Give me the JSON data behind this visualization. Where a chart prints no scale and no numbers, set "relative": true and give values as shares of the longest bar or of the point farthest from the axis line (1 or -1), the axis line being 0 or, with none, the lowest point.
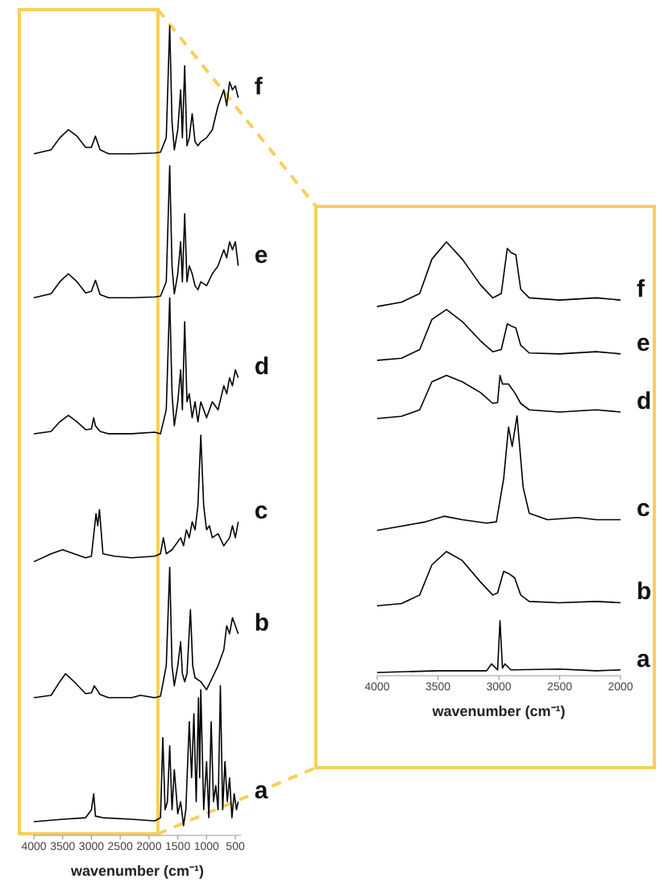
{
  "chart_data": [
    {
      "type": "line",
      "relative": true,
      "xlabel": "wavenumber (cm⁻¹)",
      "xlim": [
        4000,
        400
      ],
      "xticks": [
        4000,
        3500,
        3000,
        2500,
        2000,
        1500,
        1000,
        500
      ],
      "series": [
        {
          "name": "f",
          "color": "#000000",
          "x": [
            4000,
            3700,
            3550,
            3400,
            3250,
            3100,
            3000,
            2930,
            2850,
            2700,
            2300,
            1900,
            1800,
            1700,
            1640,
            1600,
            1560,
            1500,
            1450,
            1420,
            1380,
            1340,
            1300,
            1250,
            1200,
            1150,
            1100,
            1000,
            900,
            800,
            700,
            650,
            600,
            550,
            500,
            450
          ],
          "values": [
            0.84,
            0.845,
            0.86,
            0.87,
            0.862,
            0.848,
            0.848,
            0.862,
            0.845,
            0.84,
            0.84,
            0.841,
            0.842,
            0.86,
            1.0,
            0.88,
            0.845,
            0.87,
            0.92,
            0.86,
            0.95,
            0.85,
            0.86,
            0.89,
            0.855,
            0.85,
            0.855,
            0.86,
            0.87,
            0.9,
            0.92,
            0.9,
            0.93,
            0.92,
            0.925,
            0.91
          ]
        },
        {
          "name": "e",
          "color": "#000000",
          "x": [
            4000,
            3700,
            3550,
            3400,
            3250,
            3100,
            3000,
            2930,
            2850,
            2700,
            2300,
            1900,
            1800,
            1700,
            1640,
            1600,
            1560,
            1500,
            1450,
            1420,
            1380,
            1340,
            1300,
            1250,
            1200,
            1150,
            1100,
            1000,
            900,
            800,
            700,
            650,
            600,
            550,
            500,
            450
          ],
          "values": [
            0.66,
            0.665,
            0.68,
            0.69,
            0.68,
            0.666,
            0.668,
            0.682,
            0.664,
            0.66,
            0.66,
            0.661,
            0.662,
            0.68,
            0.825,
            0.7,
            0.665,
            0.69,
            0.73,
            0.68,
            0.765,
            0.68,
            0.7,
            0.69,
            0.675,
            0.67,
            0.68,
            0.675,
            0.69,
            0.7,
            0.72,
            0.71,
            0.73,
            0.72,
            0.73,
            0.7
          ]
        },
        {
          "name": "d",
          "color": "#000000",
          "x": [
            4000,
            3700,
            3550,
            3400,
            3250,
            3100,
            3000,
            2960,
            2930,
            2850,
            2700,
            2300,
            1900,
            1800,
            1700,
            1640,
            1600,
            1560,
            1500,
            1450,
            1420,
            1380,
            1340,
            1300,
            1250,
            1200,
            1150,
            1100,
            1000,
            900,
            800,
            700,
            650,
            600,
            550,
            500,
            450
          ],
          "values": [
            0.49,
            0.493,
            0.505,
            0.513,
            0.505,
            0.495,
            0.496,
            0.51,
            0.5,
            0.493,
            0.49,
            0.49,
            0.492,
            0.49,
            0.52,
            0.66,
            0.54,
            0.5,
            0.53,
            0.57,
            0.52,
            0.63,
            0.53,
            0.54,
            0.51,
            0.53,
            0.505,
            0.53,
            0.51,
            0.53,
            0.52,
            0.55,
            0.54,
            0.56,
            0.55,
            0.57,
            0.56
          ]
        },
        {
          "name": "c",
          "color": "#000000",
          "x": [
            4000,
            3700,
            3500,
            3300,
            3100,
            3000,
            2920,
            2890,
            2860,
            2800,
            2600,
            2300,
            1900,
            1800,
            1750,
            1700,
            1600,
            1450,
            1400,
            1350,
            1300,
            1250,
            1200,
            1150,
            1100,
            1050,
            1000,
            950,
            900,
            800,
            700,
            600,
            550,
            500,
            450
          ],
          "values": [
            0.33,
            0.34,
            0.345,
            0.34,
            0.335,
            0.337,
            0.39,
            0.375,
            0.395,
            0.34,
            0.337,
            0.335,
            0.337,
            0.34,
            0.36,
            0.34,
            0.345,
            0.36,
            0.35,
            0.37,
            0.36,
            0.38,
            0.37,
            0.4,
            0.488,
            0.4,
            0.37,
            0.375,
            0.36,
            0.365,
            0.35,
            0.36,
            0.375,
            0.36,
            0.38
          ]
        },
        {
          "name": "b",
          "color": "#000000",
          "x": [
            4000,
            3700,
            3550,
            3450,
            3300,
            3100,
            3000,
            2950,
            2850,
            2700,
            2300,
            2150,
            1900,
            1800,
            1700,
            1640,
            1600,
            1560,
            1500,
            1450,
            1420,
            1380,
            1340,
            1280,
            1240,
            1200,
            1100,
            1000,
            900,
            800,
            700,
            650,
            600,
            550,
            500,
            450
          ],
          "values": [
            0.16,
            0.163,
            0.18,
            0.19,
            0.18,
            0.165,
            0.166,
            0.175,
            0.164,
            0.16,
            0.16,
            0.163,
            0.16,
            0.162,
            0.2,
            0.323,
            0.2,
            0.175,
            0.2,
            0.23,
            0.19,
            0.18,
            0.19,
            0.27,
            0.2,
            0.185,
            0.18,
            0.17,
            0.185,
            0.2,
            0.22,
            0.25,
            0.24,
            0.26,
            0.25,
            0.24
          ]
        },
        {
          "name": "a",
          "color": "#000000",
          "x": [
            4000,
            3500,
            3100,
            3000,
            2960,
            2930,
            2800,
            2300,
            1900,
            1800,
            1760,
            1720,
            1680,
            1640,
            1600,
            1560,
            1500,
            1450,
            1400,
            1360,
            1300,
            1260,
            1220,
            1180,
            1140,
            1120,
            1100,
            1050,
            1000,
            960,
            920,
            880,
            840,
            800,
            760,
            720,
            680,
            640,
            600,
            560,
            520,
            480,
            450
          ],
          "values": [
            0.005,
            0.008,
            0.01,
            0.02,
            0.04,
            0.012,
            0.01,
            0.008,
            0.006,
            0.01,
            0.11,
            0.02,
            0.03,
            0.1,
            0.02,
            0.07,
            0.015,
            0.03,
            0.0,
            0.02,
            0.13,
            0.06,
            0.14,
            0.03,
            0.16,
            0.06,
            0.17,
            0.02,
            0.08,
            0.01,
            0.13,
            0.03,
            0.05,
            0.02,
            0.175,
            0.02,
            0.08,
            0.03,
            0.06,
            0.01,
            0.04,
            0.02,
            0.03
          ]
        }
      ]
    },
    {
      "type": "line",
      "relative": true,
      "xlabel": "wavenumber (cm⁻¹)",
      "xlim": [
        4000,
        2000
      ],
      "xticks": [
        4000,
        3500,
        3000,
        2500,
        2000
      ],
      "series": [
        {
          "name": "f",
          "color": "#000000",
          "x": [
            4000,
            3800,
            3650,
            3550,
            3430,
            3300,
            3150,
            3050,
            2980,
            2930,
            2900,
            2860,
            2820,
            2750,
            2500,
            2200,
            2000
          ],
          "values": [
            0.85,
            0.86,
            0.88,
            0.96,
            1.0,
            0.96,
            0.9,
            0.87,
            0.88,
            0.985,
            0.975,
            0.97,
            0.89,
            0.87,
            0.865,
            0.87,
            0.865
          ]
        },
        {
          "name": "e",
          "color": "#000000",
          "x": [
            4000,
            3800,
            3650,
            3550,
            3430,
            3300,
            3150,
            3050,
            2980,
            2930,
            2900,
            2860,
            2820,
            2750,
            2500,
            2200,
            2000
          ],
          "values": [
            0.725,
            0.73,
            0.75,
            0.82,
            0.843,
            0.815,
            0.77,
            0.745,
            0.75,
            0.81,
            0.805,
            0.8,
            0.76,
            0.742,
            0.74,
            0.745,
            0.74
          ]
        },
        {
          "name": "d",
          "color": "#000000",
          "x": [
            4000,
            3800,
            3650,
            3550,
            3430,
            3300,
            3150,
            3050,
            3010,
            2990,
            2970,
            2920,
            2870,
            2820,
            2750,
            2500,
            2200,
            2000
          ],
          "values": [
            0.59,
            0.595,
            0.61,
            0.675,
            0.69,
            0.675,
            0.65,
            0.625,
            0.627,
            0.69,
            0.67,
            0.67,
            0.65,
            0.625,
            0.61,
            0.605,
            0.61,
            0.605
          ]
        },
        {
          "name": "c",
          "color": "#000000",
          "x": [
            4000,
            3800,
            3600,
            3450,
            3300,
            3100,
            3020,
            2960,
            2920,
            2890,
            2850,
            2800,
            2750,
            2600,
            2350,
            2200,
            2000
          ],
          "values": [
            0.33,
            0.34,
            0.35,
            0.363,
            0.355,
            0.347,
            0.35,
            0.45,
            0.57,
            0.525,
            0.596,
            0.43,
            0.37,
            0.355,
            0.36,
            0.355,
            0.355
          ]
        },
        {
          "name": "b",
          "color": "#000000",
          "x": [
            4000,
            3800,
            3650,
            3550,
            3430,
            3300,
            3150,
            3050,
            3010,
            2960,
            2920,
            2870,
            2820,
            2750,
            2500,
            2200,
            2000
          ],
          "values": [
            0.155,
            0.16,
            0.18,
            0.25,
            0.281,
            0.26,
            0.21,
            0.18,
            0.185,
            0.235,
            0.23,
            0.22,
            0.18,
            0.165,
            0.162,
            0.165,
            0.162
          ]
        },
        {
          "name": "a",
          "color": "#000000",
          "x": [
            4000,
            3500,
            3100,
            3060,
            3010,
            2990,
            2970,
            2950,
            2900,
            2500,
            2200,
            2000
          ],
          "values": [
            0.0,
            0.004,
            0.004,
            0.02,
            0.006,
            0.12,
            0.01,
            0.02,
            0.006,
            0.008,
            0.004,
            0.006
          ]
        }
      ]
    }
  ]
}
